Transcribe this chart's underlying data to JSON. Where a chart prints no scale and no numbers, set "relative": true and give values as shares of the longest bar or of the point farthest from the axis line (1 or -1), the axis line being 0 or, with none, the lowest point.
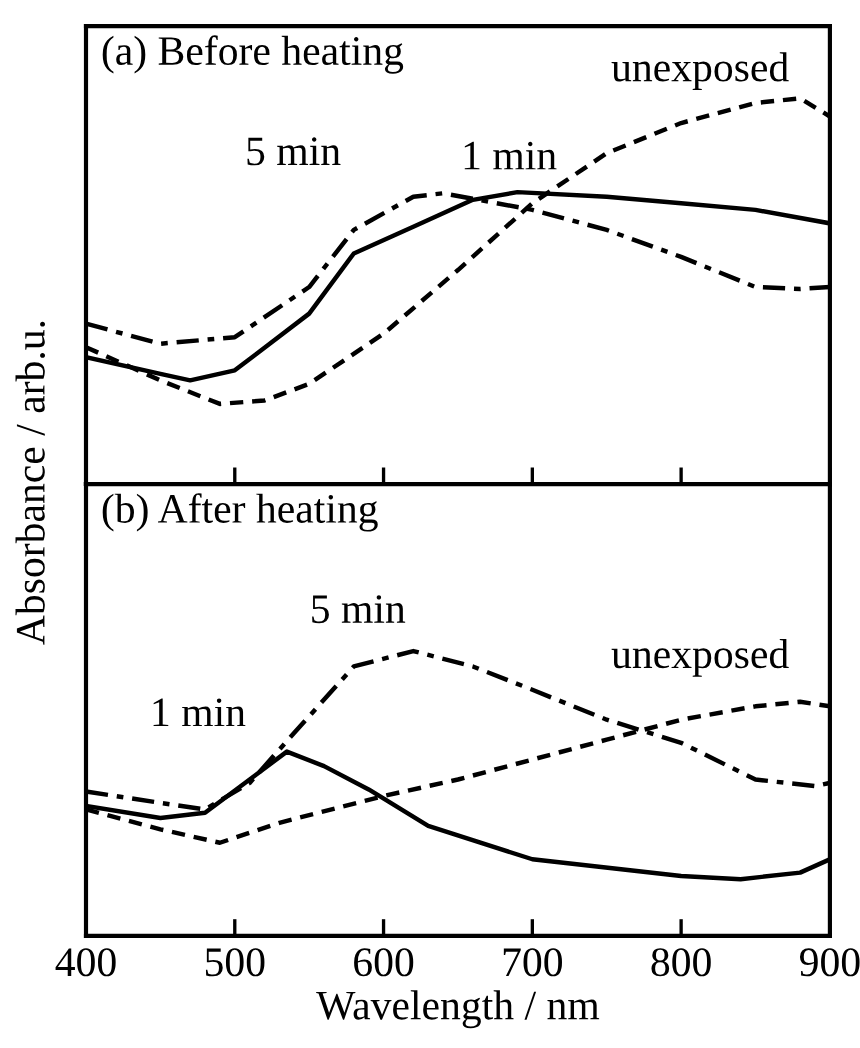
{
  "chart_data": [
    {
      "type": "line",
      "title": "(a) Before heating",
      "ylabel": "Absorbance / arb.u.",
      "relative": true,
      "xlim": [
        400,
        900
      ],
      "xticks": [
        {
          "value": 400,
          "label": null
        },
        {
          "value": 500,
          "label": null
        },
        {
          "value": 600,
          "label": null
        },
        {
          "value": 700,
          "label": null
        },
        {
          "value": 800,
          "label": null
        },
        {
          "value": 900,
          "label": null
        }
      ],
      "tick_labels": false,
      "grid": false,
      "legend": false,
      "series": [
        {
          "name": "unexposed",
          "color": "#000000",
          "line_style": "dashed",
          "x": [
            400,
            450,
            490,
            520,
            550,
            600,
            650,
            700,
            750,
            800,
            850,
            880,
            900
          ],
          "values": [
            0.355,
            0.269,
            0.208,
            0.217,
            0.26,
            0.39,
            0.555,
            0.728,
            0.858,
            0.936,
            0.988,
            1,
            0.953
          ]
        },
        {
          "name": "1 min",
          "color": "#000000",
          "line_style": "solid",
          "x": [
            400,
            450,
            470,
            500,
            550,
            580,
            620,
            660,
            690,
            750,
            800,
            850,
            900
          ],
          "values": [
            0.329,
            0.286,
            0.269,
            0.295,
            0.442,
            0.598,
            0.667,
            0.737,
            0.757,
            0.745,
            0.728,
            0.711,
            0.676
          ]
        },
        {
          "name": "5 min",
          "color": "#000000",
          "line_style": "dashdot",
          "x": [
            400,
            450,
            500,
            550,
            580,
            620,
            640,
            700,
            750,
            800,
            850,
            880,
            900
          ],
          "values": [
            0.416,
            0.364,
            0.381,
            0.511,
            0.659,
            0.745,
            0.754,
            0.711,
            0.659,
            0.589,
            0.511,
            0.506,
            0.511
          ]
        }
      ]
    },
    {
      "type": "line",
      "title": "(b) After heating",
      "xlabel": "Wavelength / nm",
      "relative": true,
      "xlim": [
        400,
        900
      ],
      "xticks": [
        400,
        500,
        600,
        700,
        800,
        900
      ],
      "tick_labels": "x",
      "grid": false,
      "legend": false,
      "series": [
        {
          "name": "unexposed",
          "color": "#000000",
          "line_style": "dashed",
          "x": [
            400,
            450,
            490,
            530,
            600,
            650,
            700,
            750,
            800,
            850,
            880,
            900
          ],
          "values": [
            0.444,
            0.374,
            0.327,
            0.397,
            0.491,
            0.549,
            0.619,
            0.689,
            0.759,
            0.806,
            0.822,
            0.806
          ]
        },
        {
          "name": "1 min",
          "color": "#000000",
          "line_style": "solid",
          "x": [
            400,
            450,
            480,
            510,
            535,
            560,
            590,
            630,
            700,
            800,
            840,
            880,
            900
          ],
          "values": [
            0.456,
            0.414,
            0.432,
            0.549,
            0.647,
            0.596,
            0.514,
            0.386,
            0.269,
            0.21,
            0.199,
            0.222,
            0.269
          ]
        },
        {
          "name": "5 min",
          "color": "#000000",
          "line_style": "dashdot",
          "x": [
            400,
            450,
            480,
            510,
            540,
            580,
            620,
            660,
            700,
            750,
            800,
            850,
            890,
            900
          ],
          "values": [
            0.507,
            0.467,
            0.444,
            0.537,
            0.713,
            0.946,
            1,
            0.946,
            0.864,
            0.759,
            0.678,
            0.549,
            0.526,
            0.537
          ]
        }
      ]
    }
  ]
}
